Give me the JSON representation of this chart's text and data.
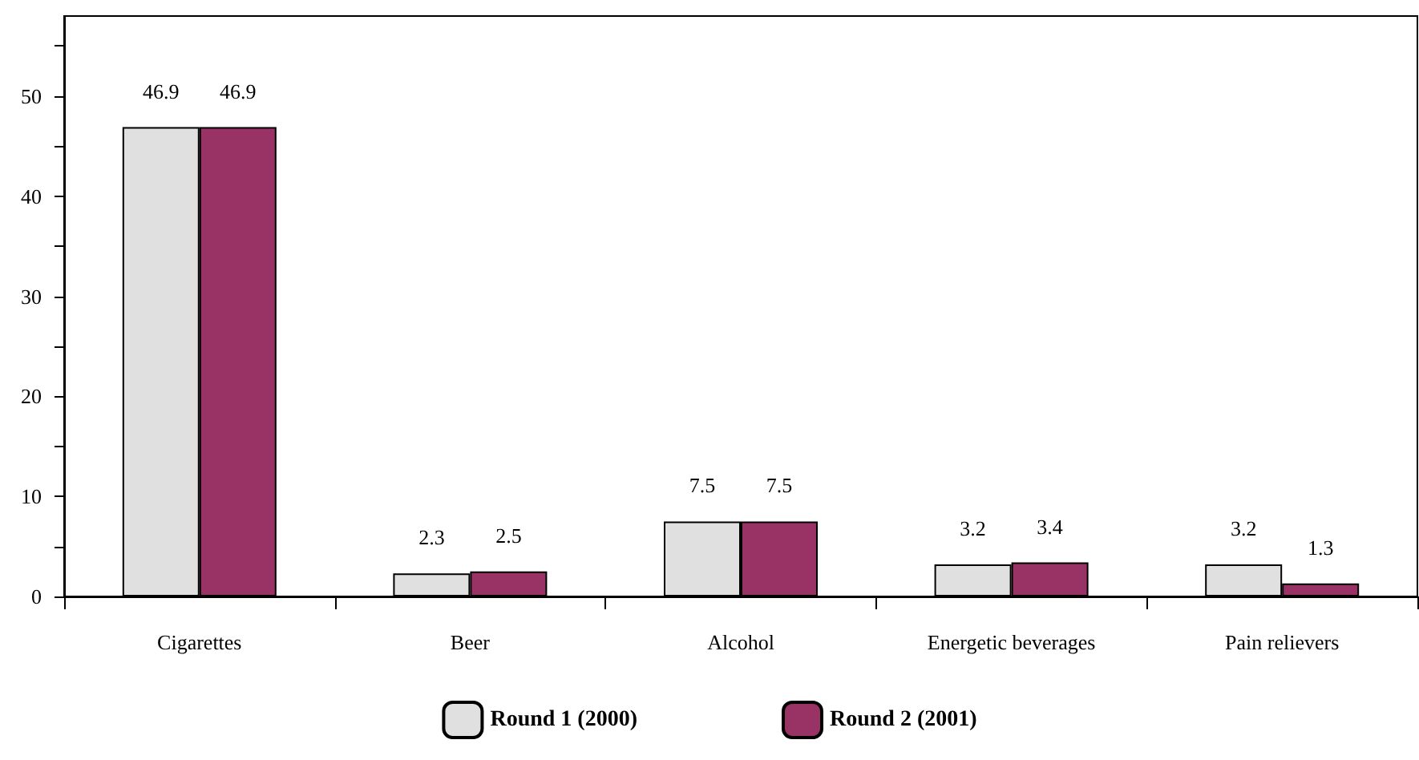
{
  "chart_data": {
    "type": "bar",
    "categories": [
      "Cigarettes",
      "Beer",
      "Alcohol",
      "Energetic beverages",
      "Pain relievers"
    ],
    "series": [
      {
        "name": "Round 1 (2000)",
        "color": "#e0e0e0",
        "values": [
          46.9,
          2.3,
          7.5,
          3.2,
          3.2
        ]
      },
      {
        "name": "Round 2 (2001)",
        "color": "#993366",
        "values": [
          46.9,
          2.5,
          7.5,
          3.4,
          1.3
        ]
      }
    ],
    "ylim": [
      0,
      58
    ],
    "yticks": [
      0,
      {
        "value": 5,
        "label": null
      },
      10,
      {
        "value": 15,
        "label": null
      },
      20,
      {
        "value": 25,
        "label": null
      },
      30,
      {
        "value": 35,
        "label": null
      },
      40,
      {
        "value": 45,
        "label": null
      },
      50,
      {
        "value": 55,
        "label": null
      }
    ],
    "data_labels": true,
    "grid": false,
    "legend": "bottom"
  }
}
